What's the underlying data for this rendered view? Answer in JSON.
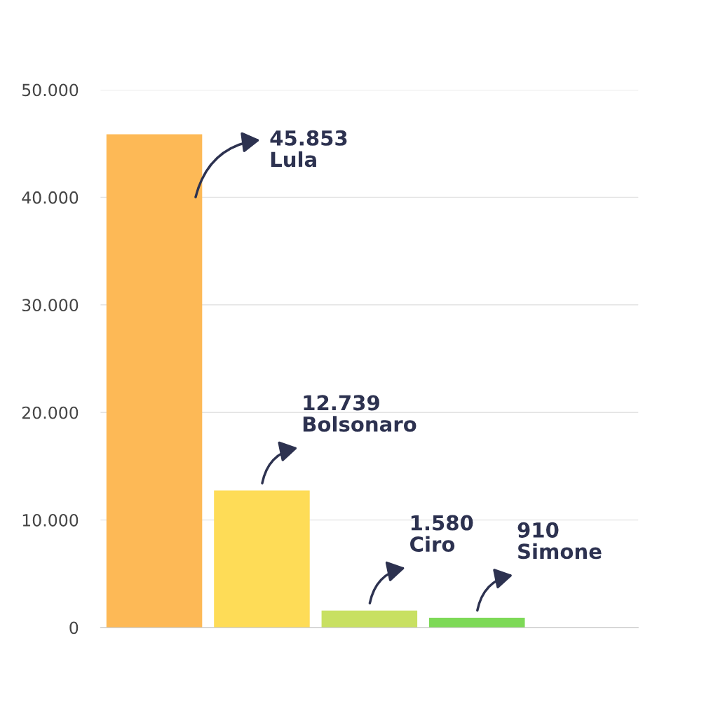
{
  "chart_data": {
    "type": "bar",
    "categories": [
      null,
      null,
      null,
      null,
      null
    ],
    "values": [
      45853,
      12739,
      1580,
      910,
      null
    ],
    "annotations": [
      "45.853\nLula",
      "12.739\nBolsonaro",
      "1.580\nCiro",
      "910\nSimone"
    ],
    "colors": [
      "#fdb956",
      "#fedc57",
      "#c8e062",
      "#7dd957",
      "#cccccc"
    ],
    "ylim": [
      0,
      50000
    ],
    "yticks": [
      {
        "value": 0,
        "label": "0"
      },
      {
        "value": 10000,
        "label": "10.000"
      },
      {
        "value": 20000,
        "label": "20.000"
      },
      {
        "value": 30000,
        "label": "30.000"
      },
      {
        "value": 40000,
        "label": "40.000"
      },
      {
        "value": 50000,
        "label": "50.000"
      }
    ],
    "grid": "y",
    "tick_labels": "y"
  }
}
